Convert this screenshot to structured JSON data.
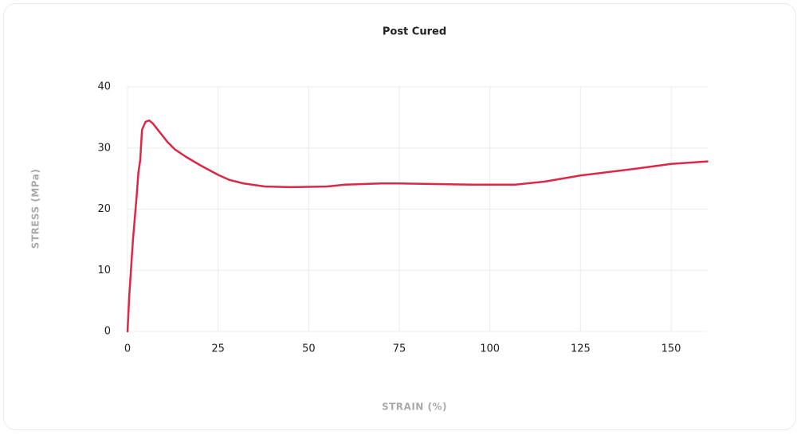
{
  "chart_data": {
    "type": "line",
    "title": "Post Cured",
    "x_label": "STRAIN (%)",
    "y_label": "STRESS (MPa)",
    "xlim": [
      0,
      160
    ],
    "ylim": [
      0,
      40
    ],
    "xticks": [
      0,
      25,
      50,
      75,
      100,
      125,
      150
    ],
    "yticks": [
      0,
      10,
      20,
      30,
      40
    ],
    "grid": true,
    "series": [
      {
        "name": "Post Cured",
        "color": "#dc2847",
        "x": [
          0,
          0.5,
          1.5,
          2.5,
          3,
          3.5,
          4,
          5,
          6,
          7,
          9,
          11,
          13,
          16,
          20,
          25,
          28,
          32,
          38,
          45,
          55,
          60,
          70,
          75,
          85,
          95,
          107,
          115,
          125,
          140,
          150,
          160
        ],
        "values": [
          0,
          6,
          15,
          22,
          26,
          28,
          33,
          34.3,
          34.5,
          34,
          32.5,
          31,
          29.8,
          28.6,
          27.2,
          25.6,
          24.8,
          24.2,
          23.7,
          23.6,
          23.7,
          24,
          24.2,
          24.2,
          24.1,
          24,
          24,
          24.5,
          25.5,
          26.6,
          27.4,
          27.8
        ]
      }
    ]
  }
}
